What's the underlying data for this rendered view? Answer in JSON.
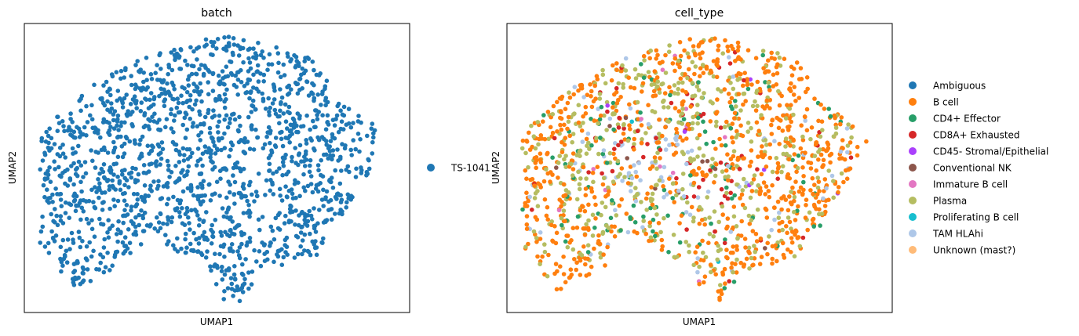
{
  "chart_data": [
    {
      "type": "scatter",
      "title": "batch",
      "xlabel": "UMAP1",
      "ylabel": "UMAP2",
      "xticks": [],
      "yticks": [],
      "grid": false,
      "legend": {
        "placement": "right-outside",
        "entries": [
          {
            "label": "TS-1041",
            "color": "#1f77b4"
          }
        ]
      },
      "series": [
        {
          "name": "TS-1041",
          "color": "#1f77b4",
          "n_points": 1600
        }
      ]
    },
    {
      "type": "scatter",
      "title": "cell_type",
      "xlabel": "UMAP1",
      "ylabel": "UMAP2",
      "xticks": [],
      "yticks": [],
      "grid": false,
      "legend": {
        "placement": "right-outside",
        "entries": [
          {
            "label": "Ambiguous",
            "color": "#1f77b4"
          },
          {
            "label": "B cell",
            "color": "#ff7f0e"
          },
          {
            "label": "CD4+ Effector",
            "color": "#279e68"
          },
          {
            "label": "CD8A+ Exhausted",
            "color": "#d62728"
          },
          {
            "label": "CD45- Stromal/Epithelial",
            "color": "#aa40fc"
          },
          {
            "label": "Conventional NK",
            "color": "#8c564b"
          },
          {
            "label": "Immature B cell",
            "color": "#e377c2"
          },
          {
            "label": "Plasma",
            "color": "#b5bd61"
          },
          {
            "label": "Proliferating B cell",
            "color": "#17becf"
          },
          {
            "label": "TAM HLAhi",
            "color": "#aec7e8"
          },
          {
            "label": "Unknown (mast?)",
            "color": "#ffbb78"
          }
        ]
      },
      "series": [
        {
          "name": "Ambiguous",
          "color": "#1f77b4",
          "n_points": 0
        },
        {
          "name": "B cell",
          "color": "#ff7f0e",
          "n_points": 820
        },
        {
          "name": "CD4+ Effector",
          "color": "#279e68",
          "n_points": 110
        },
        {
          "name": "CD8A+ Exhausted",
          "color": "#d62728",
          "n_points": 70
        },
        {
          "name": "CD45- Stromal/Epithelial",
          "color": "#aa40fc",
          "n_points": 6
        },
        {
          "name": "Conventional NK",
          "color": "#8c564b",
          "n_points": 14
        },
        {
          "name": "Immature B cell",
          "color": "#e377c2",
          "n_points": 12
        },
        {
          "name": "Plasma",
          "color": "#b5bd61",
          "n_points": 460
        },
        {
          "name": "Proliferating B cell",
          "color": "#17becf",
          "n_points": 2
        },
        {
          "name": "TAM HLAhi",
          "color": "#aec7e8",
          "n_points": 95
        },
        {
          "name": "Unknown (mast?)",
          "color": "#ffbb78",
          "n_points": 0
        }
      ]
    }
  ]
}
